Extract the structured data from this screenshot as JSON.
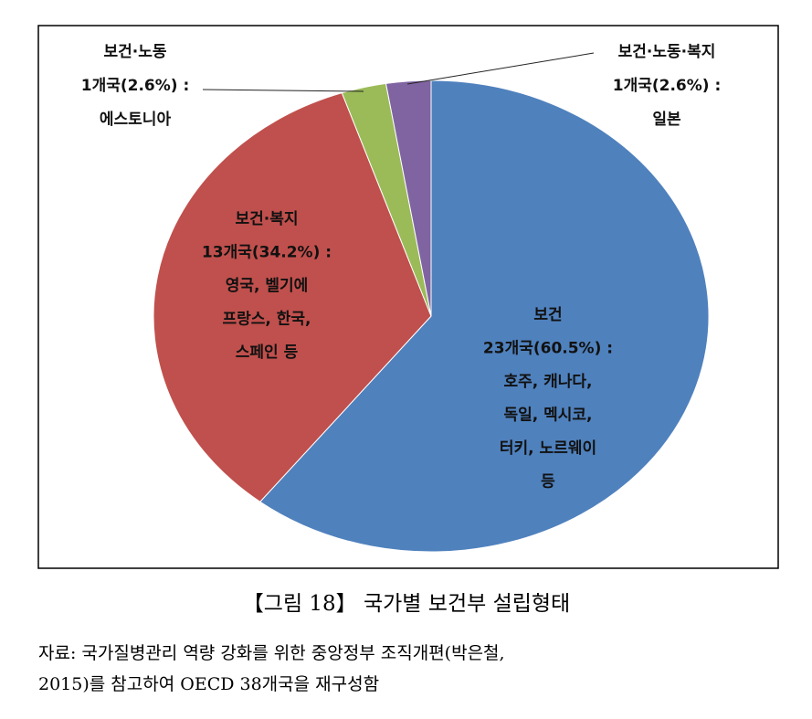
{
  "chart_data": {
    "type": "pie",
    "categories": [
      "보건",
      "보건·복지",
      "보건·노동",
      "보건·노동·복지"
    ],
    "values": [
      60.5,
      34.2,
      2.6,
      2.6
    ],
    "value_labels": [
      "23개국(60.5%) :",
      "13개국(34.2%) :",
      "1개국(2.6%) :",
      "1개국(2.6%) :"
    ],
    "details": [
      [
        "호주, 캐나다,",
        "독일, 멕시코,",
        "터키, 노르웨이",
        "등"
      ],
      [
        "영국, 벨기에",
        "프랑스, 한국,",
        "스페인 등"
      ],
      [
        "에스토니아"
      ],
      [
        "일본"
      ]
    ],
    "colors": [
      "#4f81bd",
      "#c0504d",
      "#9bbb59",
      "#8064a2"
    ]
  },
  "caption": "【그림 18】 국가별 보건부 설립형태",
  "source": [
    "자료: 국가질병관리 역량 강화를 위한 중앙정부 조직개편(박은철,",
    "2015)를 참고하여 OECD 38개국을 재구성함"
  ]
}
